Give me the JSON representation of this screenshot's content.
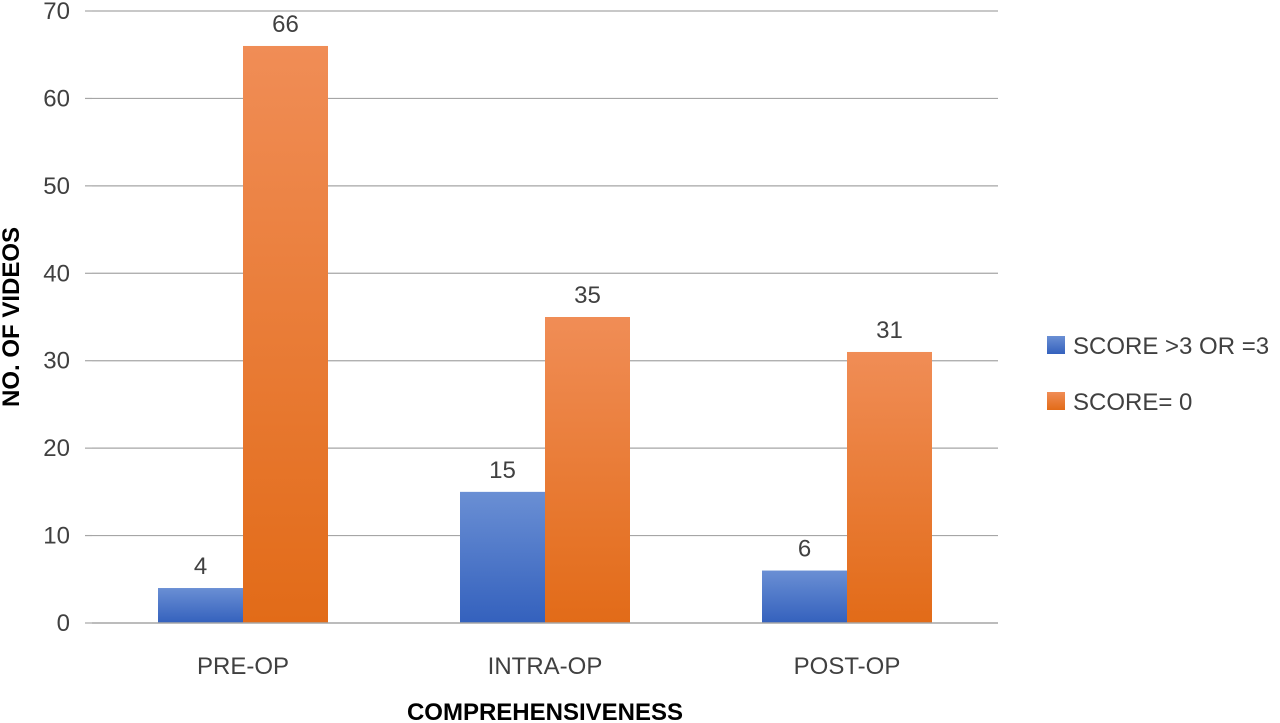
{
  "chart_data": {
    "type": "bar",
    "categories": [
      "PRE-OP",
      "INTRA-OP",
      "POST-OP"
    ],
    "series": [
      {
        "name": "SCORE >3 OR =3",
        "values": [
          4,
          15,
          6
        ],
        "color": "#4472c4"
      },
      {
        "name": "SCORE= 0",
        "values": [
          66,
          35,
          31
        ],
        "color": "#ed7d31"
      }
    ],
    "xlabel": "COMPREHENSIVENESS",
    "ylabel": "NO. OF VIDEOS",
    "ylim": [
      0,
      70
    ],
    "yticks": [
      0,
      10,
      20,
      30,
      40,
      50,
      60,
      70
    ],
    "grid": true,
    "legend_position": "right",
    "data_labels": true
  }
}
